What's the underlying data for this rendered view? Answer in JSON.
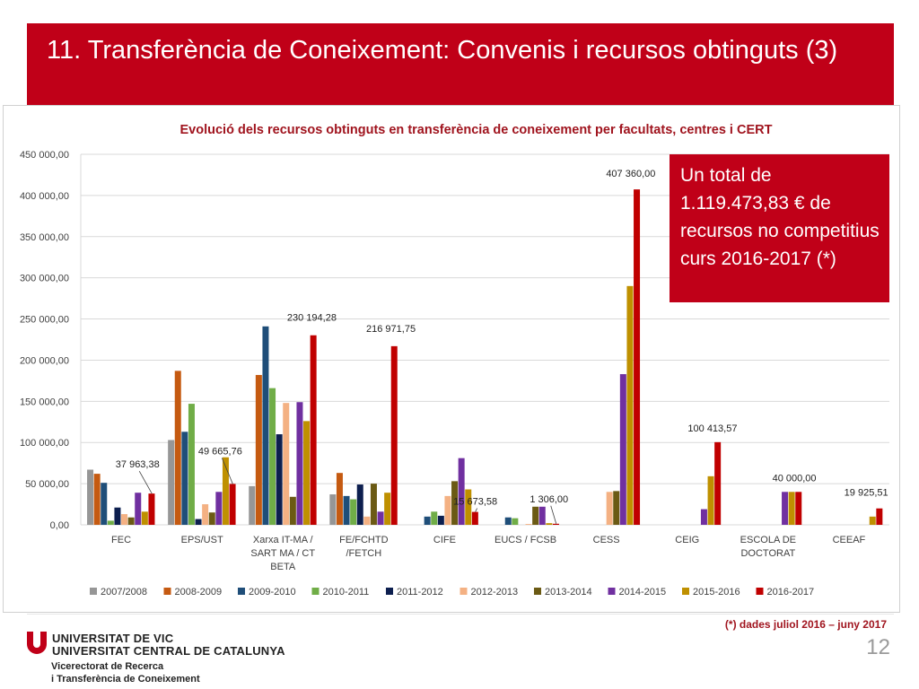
{
  "slide": {
    "title": "11. Transferència de Coneixement: Convenis i recursos obtinguts (3)",
    "callout": "Un total de 1.119.473,83 € de recursos no competitius curs 2016-2017 (*)",
    "footnote": "(*)  dades juliol 2016 – juny 2017",
    "page_number": "12",
    "university_line1": "UNIVERSITAT DE VIC",
    "university_line2": "UNIVERSITAT CENTRAL DE CATALUNYA",
    "vicerectorat_line1": "Vicerectorat de Recerca",
    "vicerectorat_line2": "i Transferència de Coneixement"
  },
  "colors": {
    "brand_red": "#c00018",
    "series": [
      "#969696",
      "#c55a11",
      "#1f4e79",
      "#70ad47",
      "#0d1f4f",
      "#f4b183",
      "#6b5a14",
      "#7030a0",
      "#bf9000",
      "#c00000"
    ]
  },
  "chart_data": {
    "type": "bar",
    "title": "Evolució dels recursos obtinguts  en transferència de coneixement per facultats, centres i CERT",
    "ylim": [
      0,
      450000
    ],
    "yticks": [
      "0,00",
      "50 000,00",
      "100 000,00",
      "150 000,00",
      "200 000,00",
      "250 000,00",
      "300 000,00",
      "350 000,00",
      "400 000,00",
      "450 000,00"
    ],
    "grid": true,
    "legend_position": "bottom",
    "categories": [
      [
        "FEC"
      ],
      [
        "EPS/UST"
      ],
      [
        "Xarxa IT-MA /",
        "SART MA / CT",
        "BETA"
      ],
      [
        "FE/FCHTD",
        "/FETCH"
      ],
      [
        "CIFE"
      ],
      [
        "EUCS / FCSB"
      ],
      [
        "CESS"
      ],
      [
        "CEIG"
      ],
      [
        "ESCOLA DE",
        "DOCTORAT"
      ],
      [
        "CEEAF"
      ]
    ],
    "series": [
      {
        "name": "2007/2008",
        "values": [
          67000,
          103000,
          47000,
          37000,
          0,
          0,
          0,
          0,
          0,
          0
        ]
      },
      {
        "name": "2008-2009",
        "values": [
          62000,
          187000,
          182000,
          63000,
          0,
          0,
          0,
          0,
          0,
          0
        ]
      },
      {
        "name": "2009-2010",
        "values": [
          51000,
          113000,
          241000,
          35000,
          10000,
          9000,
          0,
          0,
          0,
          0
        ]
      },
      {
        "name": "2010-2011",
        "values": [
          5000,
          147000,
          166000,
          31000,
          16000,
          8000,
          0,
          0,
          0,
          0
        ]
      },
      {
        "name": "2011-2012",
        "values": [
          21000,
          7000,
          110000,
          49000,
          11000,
          0,
          0,
          0,
          0,
          0
        ]
      },
      {
        "name": "2012-2013",
        "values": [
          13000,
          25000,
          148000,
          10000,
          35000,
          1000,
          40000,
          0,
          0,
          0
        ]
      },
      {
        "name": "2013-2014",
        "values": [
          9000,
          15000,
          34000,
          50000,
          53000,
          22000,
          41000,
          0,
          0,
          0
        ]
      },
      {
        "name": "2014-2015",
        "values": [
          39000,
          40000,
          149000,
          16000,
          81000,
          22000,
          183000,
          19000,
          40000,
          0
        ]
      },
      {
        "name": "2015-2016",
        "values": [
          16000,
          82000,
          126000,
          39000,
          43000,
          2000,
          290000,
          59000,
          40000,
          10000
        ]
      },
      {
        "name": "2016-2017",
        "values": [
          37963.38,
          49665.76,
          230194.28,
          216971.75,
          15673.58,
          1306.0,
          407360.0,
          100413.57,
          40000.0,
          19925.51
        ]
      }
    ],
    "data_labels": [
      "37 963,38",
      "49 665,76",
      "230 194,28",
      "216 971,75",
      "15 673,58",
      "1 306,00",
      "407 360,00",
      "100 413,57",
      "40 000,00",
      "19 925,51"
    ]
  }
}
